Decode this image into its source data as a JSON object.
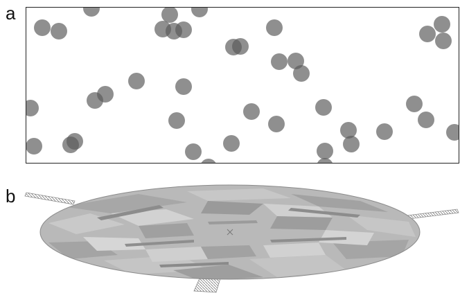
{
  "panels": {
    "a": {
      "label": "a"
    },
    "b": {
      "label": "b"
    }
  },
  "colors": {
    "particle": "#5a5a5a",
    "particle_opacity": 0.68,
    "frame": "#222222",
    "disk_base": "#b9b9b9",
    "disk_edge": "#8a8a8a",
    "disk_light": "#d3d3d3",
    "disk_mid": "#a8a8a8",
    "disk_dark": "#8f8f8f",
    "arm": "#9a9a9a"
  }
}
